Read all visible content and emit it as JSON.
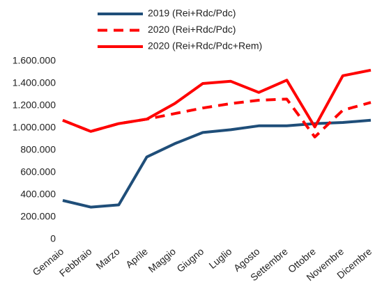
{
  "chart_data": {
    "type": "line",
    "categories": [
      "Gennaio",
      "Febbraio",
      "Marzo",
      "Aprile",
      "Maggio",
      "Giugno",
      "Luglio",
      "Agosto",
      "Settembre",
      "Ottobre",
      "Novembre",
      "Dicembre"
    ],
    "series": [
      {
        "name": "2019 (Rei+Rdc/Pdc)",
        "color": "#1f4e79",
        "dash": false,
        "values": [
          350000,
          290000,
          310000,
          740000,
          860000,
          960000,
          985000,
          1020000,
          1020000,
          1040000,
          1050000,
          1070000
        ]
      },
      {
        "name": "2020 (Rei+Rdc/Pdc)",
        "color": "#ff0000",
        "dash": true,
        "values": [
          1070000,
          970000,
          1040000,
          1080000,
          1130000,
          1180000,
          1220000,
          1250000,
          1260000,
          920000,
          1160000,
          1230000
        ]
      },
      {
        "name": "2020 (Rei+Rdc/Pdc+Rem)",
        "color": "#ff0000",
        "dash": false,
        "values": [
          1070000,
          970000,
          1040000,
          1080000,
          1220000,
          1400000,
          1420000,
          1320000,
          1430000,
          1010000,
          1470000,
          1520000
        ]
      }
    ],
    "ylim": [
      0,
      1600000
    ],
    "yticks": [
      0,
      {
        "value": 200000,
        "label": "200.000"
      },
      {
        "value": 400000,
        "label": "400.000"
      },
      {
        "value": 600000,
        "label": "600.000"
      },
      {
        "value": 800000,
        "label": "800.000"
      },
      {
        "value": 1000000,
        "label": "1.000.000"
      },
      {
        "value": 1200000,
        "label": "1.200.000"
      },
      {
        "value": 1400000,
        "label": "1.400.000"
      },
      {
        "value": 1600000,
        "label": "1.600.000"
      }
    ],
    "legend": "top",
    "grid": false
  }
}
